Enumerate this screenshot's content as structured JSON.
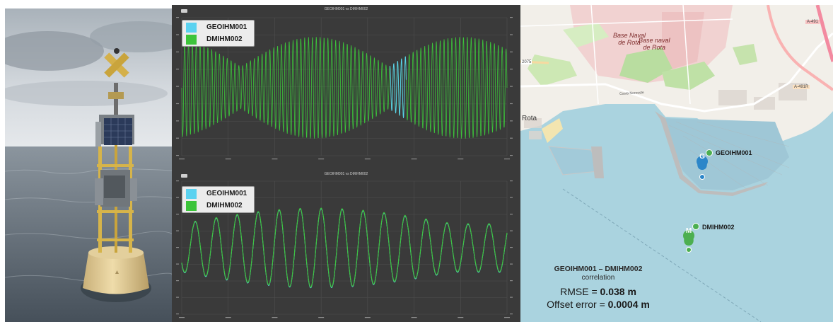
{
  "charts": {
    "top": {
      "title": "GEOIHM001 vs DMIHM002"
    },
    "bottom": {
      "title": "GEOIHM001 vs DMIHM002"
    },
    "legend": [
      {
        "label": "GEOIHM001",
        "color": "#5bd2f0"
      },
      {
        "label": "DMIHM002",
        "color": "#3cc43a"
      }
    ]
  },
  "map": {
    "places": {
      "base_naval_1": "Base Naval\nde Rota",
      "base_naval_2": "Base naval\nde Rota",
      "rota": "Rota",
      "costa_noroeste": "Costa Noroeste",
      "road_a491": "A-491",
      "road_a491r": "A-491R",
      "road_2075": "2075"
    },
    "markers": {
      "geo": {
        "label": "GEOIHM001",
        "glyph": "G"
      },
      "dmi": {
        "label": "DMIHM002",
        "glyph": "M"
      }
    },
    "stats": {
      "title": "GEOIHM001 – DMIHM002",
      "subtitle": "correlation",
      "rmse_label": "RMSE = ",
      "rmse_value": "0.038 m",
      "offset_label": "Offset error = ",
      "offset_value": "0.0004 m"
    }
  },
  "colors": {
    "chart_bg": "#3a3a3a",
    "series_geo": "#5bd2f0",
    "series_dmi": "#3cc43a",
    "sea": "#aad3df",
    "land": "#f2efe9",
    "navy_base": "#f0c8c8"
  }
}
